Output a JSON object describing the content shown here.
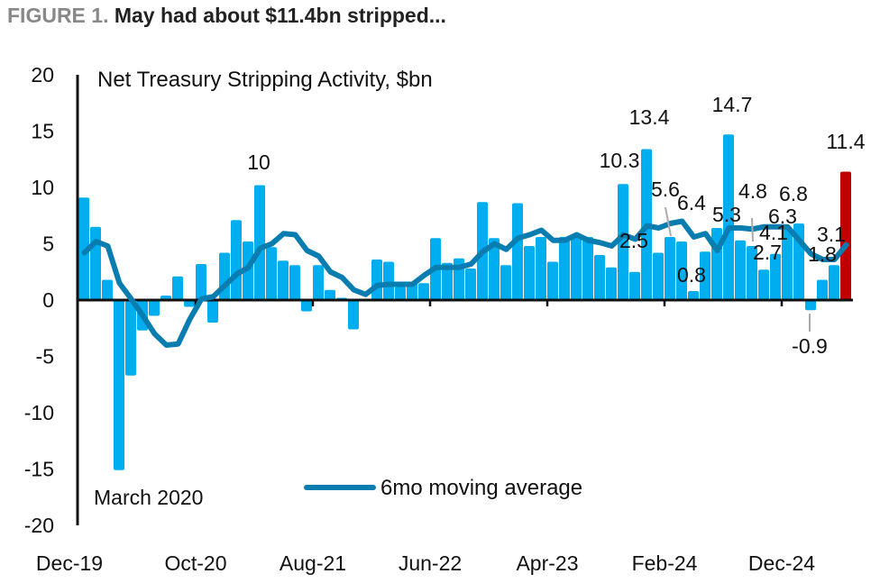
{
  "header": {
    "figure_label": "FIGURE 1.",
    "title": "May had about $11.4bn stripped..."
  },
  "colors": {
    "bar": "#00AEEF",
    "highlight_bar": "#C00000",
    "moving_average": "#0A7DB0",
    "axis": "#111111"
  },
  "chart_data": {
    "type": "bar",
    "title": "Net Treasury Stripping Activity, $bn",
    "xlabel": "",
    "ylabel": "",
    "ylim": [
      -20,
      20
    ],
    "yticks": [
      20,
      15,
      10,
      5,
      0,
      -5,
      -10,
      -15,
      -20
    ],
    "xtick_labels": [
      {
        "index": 0,
        "label": "Dec-19"
      },
      {
        "index": 10,
        "label": "Oct-20"
      },
      {
        "index": 20,
        "label": "Aug-21"
      },
      {
        "index": 30,
        "label": "Jun-22"
      },
      {
        "index": 40,
        "label": "Apr-23"
      },
      {
        "index": 50,
        "label": "Feb-24"
      },
      {
        "index": 60,
        "label": "Dec-24"
      }
    ],
    "period": "monthly, Dec-19 to May-25",
    "series": [
      {
        "name": "Net Treasury Stripping Activity",
        "type": "bar",
        "values": [
          9.1,
          6.5,
          1.8,
          -15.1,
          -6.7,
          -2.7,
          -1.4,
          0.4,
          2.1,
          -0.6,
          3.2,
          -2.0,
          4.2,
          7.1,
          5.2,
          10.2,
          4.7,
          3.5,
          3.1,
          -1.0,
          3.1,
          0.9,
          0.2,
          -2.6,
          0.1,
          3.6,
          3.4,
          1.2,
          1.6,
          1.5,
          5.5,
          3.3,
          3.7,
          2.8,
          8.7,
          5.5,
          3.1,
          8.6,
          4.8,
          5.6,
          3.4,
          5.6,
          5.7,
          5.6,
          4.0,
          2.9,
          10.3,
          2.5,
          13.4,
          4.2,
          5.6,
          5.2,
          0.8,
          4.3,
          6.4,
          14.7,
          5.3,
          4.8,
          2.7,
          4.1,
          6.3,
          6.8,
          -0.9,
          1.8,
          3.1,
          11.4
        ]
      },
      {
        "name": "6mo moving average",
        "type": "line",
        "values": [
          4.2,
          5.2,
          4.8,
          1.5,
          0.1,
          -1.4,
          -3.0,
          -4.0,
          -3.9,
          -1.7,
          0.1,
          0.3,
          1.3,
          2.3,
          2.9,
          4.6,
          5.0,
          5.9,
          5.8,
          4.4,
          3.9,
          2.5,
          2.0,
          0.9,
          0.5,
          1.3,
          1.4,
          1.4,
          1.4,
          2.2,
          2.9,
          2.9,
          2.9,
          3.2,
          4.3,
          5.0,
          4.5,
          5.5,
          5.8,
          6.2,
          5.3,
          5.3,
          5.8,
          5.3,
          5.1,
          4.8,
          5.8,
          5.4,
          6.6,
          6.4,
          6.8,
          7.0,
          5.6,
          5.9,
          4.4,
          6.4,
          6.4,
          6.3,
          6.5,
          6.5,
          6.5,
          5.3,
          4.1,
          3.6,
          3.6,
          4.9
        ]
      }
    ],
    "highlight_index": 65,
    "data_labels": [
      {
        "index": 15,
        "text": "10"
      },
      {
        "index": 46,
        "text": "10.3"
      },
      {
        "index": 47,
        "text": "2.5"
      },
      {
        "index": 48,
        "text": "13.4"
      },
      {
        "index": 50,
        "text": "5.6"
      },
      {
        "index": 52,
        "text": "0.8"
      },
      {
        "index": 54,
        "text": "6.4"
      },
      {
        "index": 55,
        "text": "14.7"
      },
      {
        "index": 56,
        "text": "5.3"
      },
      {
        "index": 57,
        "text": "4.8"
      },
      {
        "index": 58,
        "text": "2.7"
      },
      {
        "index": 59,
        "text": "4.1"
      },
      {
        "index": 60,
        "text": "6.3"
      },
      {
        "index": 61,
        "text": "6.8"
      },
      {
        "index": 62,
        "text": "-0.9"
      },
      {
        "index": 63,
        "text": "1.8"
      },
      {
        "index": 64,
        "text": "3.1"
      },
      {
        "index": 65,
        "text": "11.4"
      }
    ],
    "annotations": [
      {
        "text": "March 2020",
        "index": 3
      }
    ],
    "legend": {
      "label": "6mo moving average",
      "placement": "bottom-center"
    },
    "grid": false
  }
}
